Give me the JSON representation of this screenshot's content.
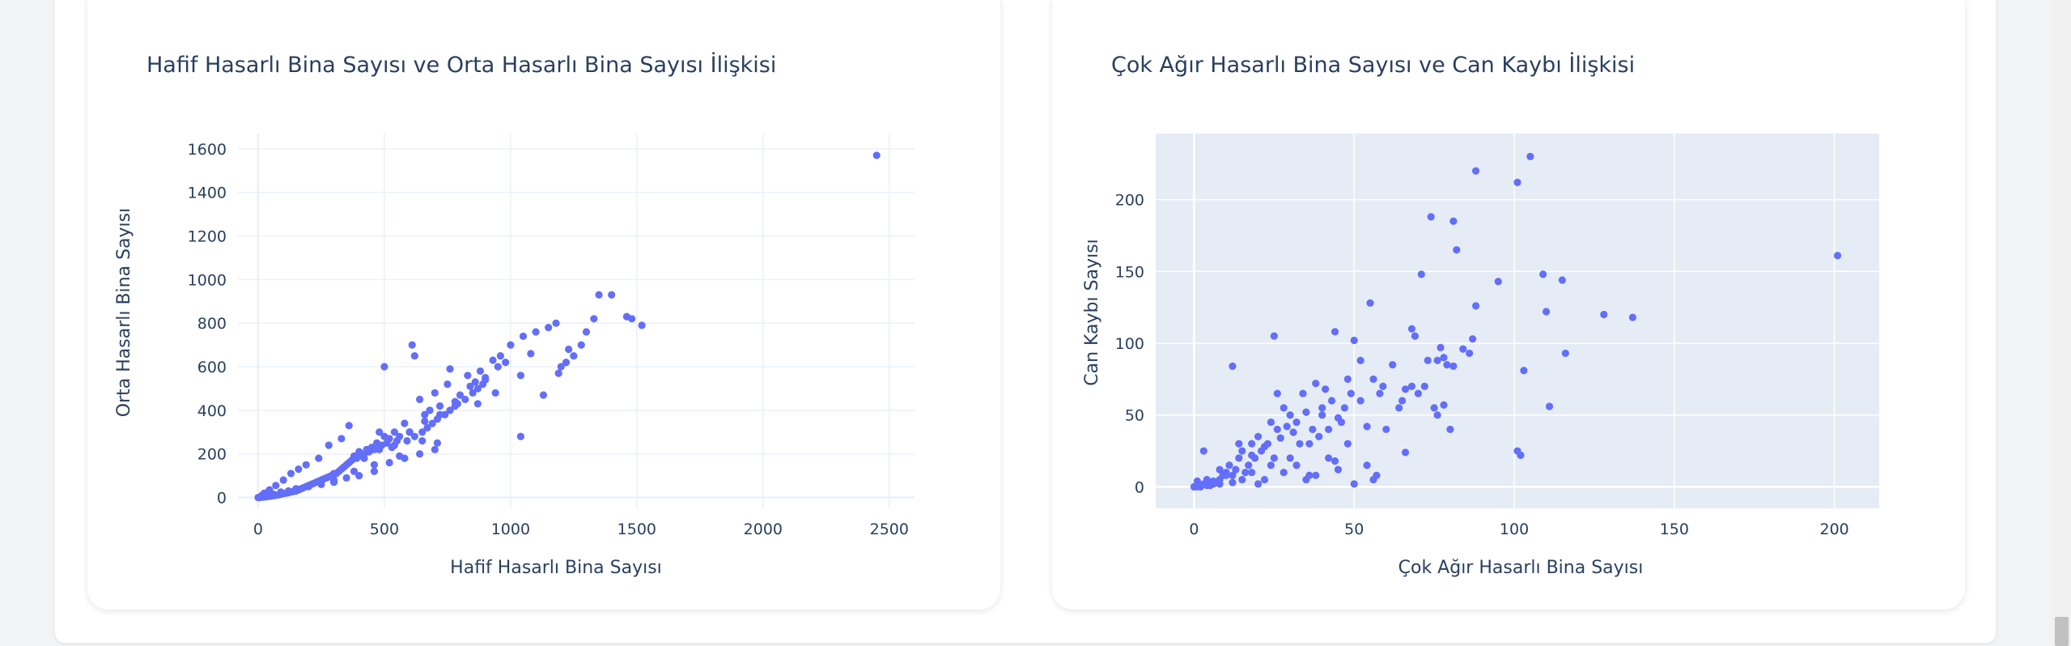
{
  "colors": {
    "marker": "#636efa",
    "plot_bg_right": "#e5ecf6",
    "plot_bg_left": "#ffffff",
    "grid_left": "#ebf0f8",
    "grid_right": "#ffffff",
    "text": "#2a3f5f"
  },
  "charts": [
    {
      "title": "Hafif Hasarlı Bina Sayısı ve Orta Hasarlı Bina Sayısı İlişkisi",
      "xlabel": "Hafif Hasarlı Bina Sayısı",
      "ylabel": "Orta Hasarlı Bina Sayısı",
      "xticks": [
        "0",
        "500",
        "1000",
        "1500",
        "2000",
        "2500"
      ],
      "yticks": [
        "0",
        "200",
        "400",
        "600",
        "800",
        "1000",
        "1200",
        "1400",
        "1600"
      ]
    },
    {
      "title": "Çok Ağır Hasarlı Bina Sayısı ve Can Kaybı İlişkisi",
      "xlabel": "Çok Ağır Hasarlı Bina Sayısı",
      "ylabel": "Can Kaybı Sayısı",
      "xticks": [
        "0",
        "50",
        "100",
        "150",
        "200"
      ],
      "yticks": [
        "0",
        "50",
        "100",
        "150",
        "200"
      ]
    }
  ],
  "chart_data": [
    {
      "type": "scatter",
      "title": "Hafif Hasarlı Bina Sayısı ve Orta Hasarlı Bina Sayısı İlişkisi",
      "xlabel": "Hafif Hasarlı Bina Sayısı",
      "ylabel": "Orta Hasarlı Bina Sayısı",
      "xlim": [
        -80,
        2600
      ],
      "ylim": [
        -50,
        1670
      ],
      "grid": true,
      "x": [
        2450,
        1520,
        1480,
        1460,
        1400,
        1350,
        1330,
        1300,
        1280,
        1250,
        1230,
        1220,
        1200,
        1190,
        1180,
        1150,
        1130,
        1100,
        1080,
        1050,
        1040,
        1000,
        980,
        960,
        950,
        930,
        900,
        890,
        880,
        870,
        860,
        850,
        840,
        820,
        800,
        790,
        780,
        760,
        750,
        740,
        720,
        710,
        700,
        690,
        680,
        670,
        660,
        650,
        640,
        620,
        610,
        600,
        590,
        580,
        560,
        550,
        540,
        530,
        520,
        510,
        500,
        490,
        480,
        470,
        460,
        450,
        440,
        430,
        420,
        410,
        400,
        390,
        380,
        370,
        360,
        350,
        340,
        330,
        320,
        310,
        300,
        290,
        280,
        270,
        260,
        250,
        240,
        230,
        220,
        210,
        200,
        190,
        180,
        170,
        160,
        150,
        140,
        130,
        120,
        110,
        100,
        90,
        80,
        70,
        60,
        50,
        40,
        30,
        20,
        10,
        5,
        0,
        620,
        500,
        760,
        830,
        900,
        1040,
        940,
        870,
        640,
        710,
        560,
        460,
        380,
        300,
        340,
        420,
        480,
        540,
        600,
        660,
        720,
        780,
        700,
        650,
        580,
        520,
        460,
        400,
        350,
        300,
        250,
        200,
        150,
        120,
        90,
        60,
        30,
        360,
        330,
        280,
        240,
        190,
        160,
        130,
        100,
        70,
        45,
        25,
        15
      ],
      "y": [
        1570,
        790,
        820,
        830,
        930,
        930,
        820,
        760,
        700,
        650,
        680,
        620,
        600,
        570,
        800,
        780,
        470,
        760,
        660,
        740,
        280,
        700,
        620,
        650,
        600,
        630,
        550,
        520,
        580,
        500,
        530,
        480,
        510,
        450,
        470,
        430,
        440,
        400,
        520,
        380,
        420,
        360,
        480,
        340,
        400,
        320,
        380,
        300,
        450,
        280,
        700,
        300,
        260,
        340,
        280,
        260,
        300,
        230,
        270,
        250,
        280,
        240,
        300,
        250,
        220,
        230,
        210,
        220,
        200,
        190,
        210,
        180,
        190,
        170,
        160,
        150,
        140,
        130,
        120,
        110,
        110,
        100,
        95,
        90,
        85,
        80,
        75,
        70,
        65,
        60,
        55,
        50,
        45,
        40,
        35,
        30,
        28,
        25,
        22,
        20,
        18,
        15,
        12,
        10,
        8,
        6,
        5,
        3,
        2,
        1,
        0,
        0,
        650,
        600,
        590,
        560,
        540,
        560,
        480,
        430,
        200,
        250,
        190,
        150,
        120,
        80,
        140,
        180,
        220,
        240,
        300,
        350,
        380,
        420,
        220,
        260,
        180,
        160,
        120,
        100,
        90,
        70,
        60,
        50,
        40,
        30,
        25,
        15,
        10,
        330,
        270,
        240,
        180,
        150,
        130,
        110,
        80,
        55,
        35,
        20,
        10
      ]
    },
    {
      "type": "scatter",
      "title": "Çok Ağır Hasarlı Bina Sayısı ve Can Kaybı İlişkisi",
      "xlabel": "Çok Ağır Hasarlı Bina Sayısı",
      "ylabel": "Can Kaybı Sayısı",
      "xlim": [
        -12,
        214
      ],
      "ylim": [
        -15,
        246
      ],
      "grid": true,
      "x": [
        201,
        137,
        128,
        116,
        115,
        111,
        110,
        109,
        105,
        103,
        102,
        101,
        101,
        95,
        88,
        88,
        87,
        86,
        82,
        81,
        81,
        80,
        79,
        78,
        78,
        77,
        76,
        75,
        74,
        73,
        72,
        71,
        70,
        69,
        68,
        66,
        65,
        64,
        62,
        60,
        59,
        58,
        56,
        55,
        54,
        52,
        50,
        49,
        48,
        47,
        46,
        45,
        44,
        43,
        42,
        41,
        40,
        39,
        38,
        37,
        36,
        35,
        34,
        33,
        32,
        31,
        30,
        29,
        28,
        27,
        26,
        25,
        24,
        23,
        22,
        21,
        20,
        19,
        18,
        17,
        16,
        15,
        14,
        13,
        12,
        11,
        10,
        9,
        8,
        7,
        6,
        5,
        4,
        3,
        2,
        1,
        0,
        57,
        56,
        54,
        52,
        50,
        48,
        45,
        42,
        40,
        38,
        35,
        32,
        30,
        28,
        25,
        22,
        20,
        18,
        15,
        12,
        10,
        8,
        6,
        4,
        2,
        0,
        12,
        26,
        44,
        36,
        24,
        18,
        14,
        8,
        5,
        3,
        1,
        66,
        68,
        84,
        76
      ],
      "y": [
        161,
        118,
        120,
        93,
        144,
        56,
        122,
        148,
        230,
        81,
        22,
        212,
        25,
        143,
        220,
        126,
        103,
        93,
        165,
        84,
        185,
        40,
        85,
        90,
        57,
        97,
        50,
        55,
        188,
        88,
        70,
        148,
        65,
        105,
        110,
        68,
        60,
        55,
        85,
        40,
        70,
        65,
        75,
        128,
        42,
        60,
        102,
        65,
        75,
        55,
        45,
        48,
        108,
        60,
        40,
        68,
        55,
        35,
        72,
        40,
        30,
        52,
        65,
        30,
        45,
        38,
        50,
        42,
        55,
        34,
        40,
        105,
        45,
        30,
        28,
        25,
        35,
        20,
        30,
        15,
        10,
        25,
        20,
        12,
        8,
        15,
        10,
        8,
        5,
        3,
        2,
        1,
        5,
        2,
        1,
        0,
        0,
        8,
        5,
        15,
        88,
        2,
        30,
        12,
        20,
        50,
        8,
        5,
        15,
        20,
        10,
        20,
        5,
        2,
        10,
        5,
        3,
        8,
        2,
        4,
        1,
        0,
        0,
        84,
        65,
        18,
        8,
        15,
        22,
        30,
        12,
        2,
        25,
        4,
        24,
        70,
        96,
        88
      ]
    }
  ]
}
